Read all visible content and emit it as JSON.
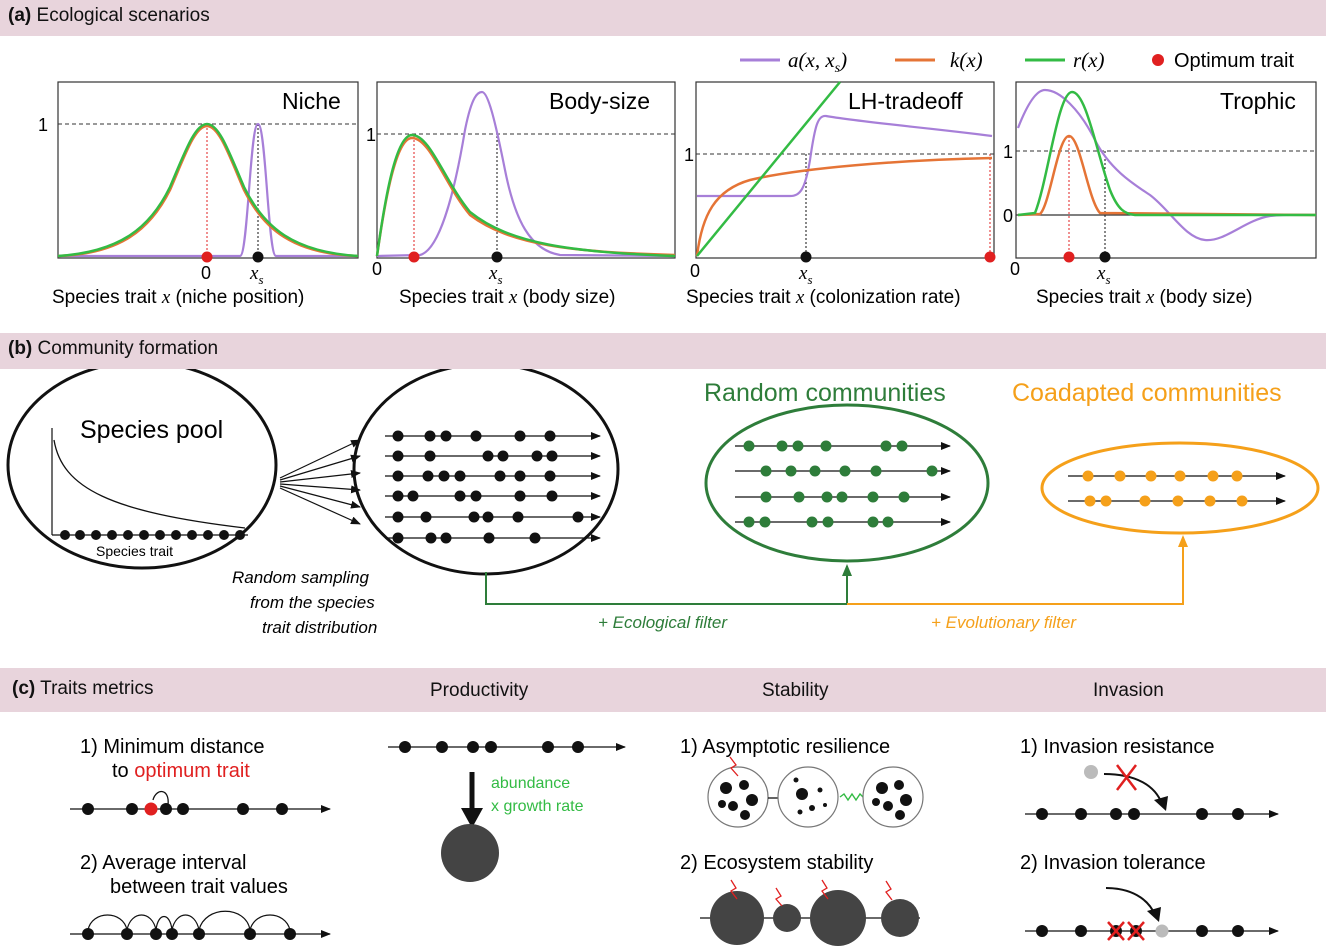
{
  "section_a": {
    "tag": "(a)",
    "title": "Ecological scenarios"
  },
  "legend": {
    "a_label": "a(x, x",
    "a_sub": "s",
    "a_close": ")",
    "k_label": "k(x)",
    "r_label": "r(x)",
    "opt_label": "Optimum trait",
    "colors": {
      "a": "#a77fd8",
      "k": "#e57436",
      "r": "#33bb44",
      "opt": "#e02020"
    }
  },
  "panels": [
    {
      "title": "Niche",
      "one": "1",
      "zero": "0",
      "xs": "x",
      "xs_sub": "s",
      "xlabel_pre": "Species trait ",
      "xlabel_var": "x",
      "xlabel_post": " (niche position)"
    },
    {
      "title": "Body-size",
      "one": "1",
      "zero": "0",
      "xs": "x",
      "xs_sub": "s",
      "xlabel_pre": "Species trait ",
      "xlabel_var": "x",
      "xlabel_post": " (body size)"
    },
    {
      "title": "LH-tradeoff",
      "one": "1",
      "zero": "0",
      "xs": "x",
      "xs_sub": "s",
      "xlabel_pre": "Species trait ",
      "xlabel_var": "x",
      "xlabel_post": " (colonization rate)"
    },
    {
      "title": "Trophic",
      "one": "1",
      "zero": "0",
      "zero_y": "0",
      "xs": "x",
      "xs_sub": "s",
      "xlabel_pre": "Species trait ",
      "xlabel_var": "x",
      "xlabel_post": " (body size)"
    }
  ],
  "section_b": {
    "tag": "(b)",
    "title": "Community formation"
  },
  "community": {
    "pool_title": "Species pool",
    "pool_axis": "Species trait",
    "sampling_l1": "Random sampling",
    "sampling_l2": "from the species",
    "sampling_l3": "trait distribution",
    "random_title": "Random communities",
    "coadapted_title": "Coadapted communities",
    "eco_filter": "+ Ecological filter",
    "evo_filter": "+ Evolutionary filter",
    "green": "#2e7d3a",
    "orange": "#f5a01a"
  },
  "section_c": {
    "tag": "(c)",
    "title": "Traits metrics",
    "productivity": "Productivity",
    "stability": "Stability",
    "invasion": "Invasion"
  },
  "metrics": {
    "min_dist_l1": "1) Minimum distance",
    "min_dist_l2a": "to ",
    "min_dist_l2b": "optimum trait",
    "avg_int_l1": "2) Average interval",
    "avg_int_l2": "between trait values",
    "prod_l1": "abundance",
    "prod_l2": "x growth rate",
    "resilience": "1) Asymptotic resilience",
    "eco_stab": "2) Ecosystem stability",
    "inv_resist": "1) Invasion resistance",
    "inv_tol": "2) Invasion tolerance"
  }
}
